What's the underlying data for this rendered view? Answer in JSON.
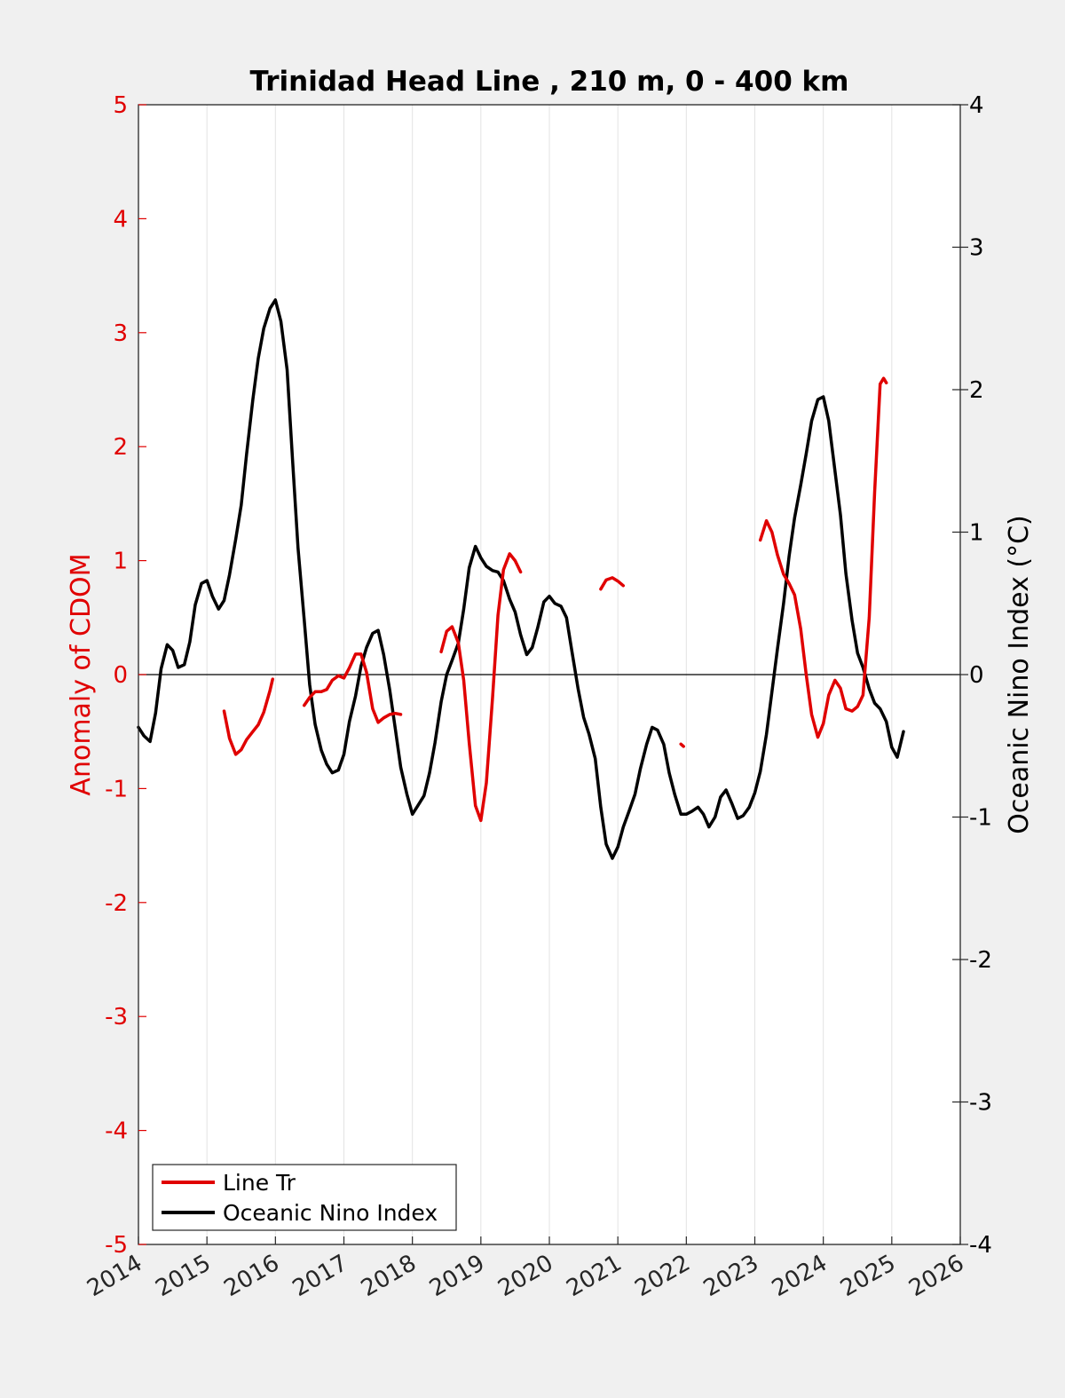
{
  "chart_data": {
    "type": "line",
    "title": "Trinidad Head Line , 210 m, 0 - 400 km",
    "ylabel_left": "Anomaly of CDOM",
    "ylabel_right": "Oceanic Nino Index (°C)",
    "xlabel": "",
    "xlim": [
      2014,
      2026
    ],
    "ylim_left": [
      -5,
      5
    ],
    "ylim_right": [
      -4,
      4
    ],
    "x_ticks": [
      "2014",
      "2015",
      "2016",
      "2017",
      "2018",
      "2019",
      "2020",
      "2021",
      "2022",
      "2023",
      "2024",
      "2025",
      "2026"
    ],
    "y_ticks_left": [
      "-5",
      "-4",
      "-3",
      "-2",
      "-1",
      "0",
      "1",
      "2",
      "3",
      "4",
      "5"
    ],
    "y_ticks_right": [
      "-4",
      "-3",
      "-2",
      "-1",
      "0",
      "1",
      "2",
      "3",
      "4"
    ],
    "grid": "vertical",
    "legend_position": "bottom-left",
    "colors": {
      "cdom": "#e00000",
      "oni": "#000000",
      "left_axis": "#e00000",
      "right_axis": "#000000"
    },
    "series": [
      {
        "name": "Line Tr",
        "axis": "left",
        "color": "#e00000",
        "segments": [
          [
            [
              2015.25,
              -0.32
            ],
            [
              2015.33,
              -0.56
            ],
            [
              2015.42,
              -0.7
            ],
            [
              2015.5,
              -0.66
            ],
            [
              2015.58,
              -0.57
            ],
            [
              2015.67,
              -0.5
            ],
            [
              2015.75,
              -0.44
            ],
            [
              2015.83,
              -0.33
            ],
            [
              2015.92,
              -0.14
            ],
            [
              2015.96,
              -0.04
            ]
          ],
          [
            [
              2016.42,
              -0.27
            ],
            [
              2016.5,
              -0.2
            ],
            [
              2016.58,
              -0.15
            ],
            [
              2016.67,
              -0.15
            ],
            [
              2016.75,
              -0.13
            ],
            [
              2016.83,
              -0.05
            ],
            [
              2016.92,
              -0.01
            ],
            [
              2017.0,
              -0.03
            ],
            [
              2017.08,
              0.06
            ],
            [
              2017.17,
              0.18
            ],
            [
              2017.25,
              0.18
            ],
            [
              2017.33,
              0.02
            ],
            [
              2017.42,
              -0.3
            ],
            [
              2017.5,
              -0.42
            ],
            [
              2017.58,
              -0.38
            ],
            [
              2017.67,
              -0.35
            ],
            [
              2017.75,
              -0.34
            ],
            [
              2017.83,
              -0.35
            ]
          ],
          [
            [
              2018.42,
              0.2
            ],
            [
              2018.5,
              0.38
            ],
            [
              2018.58,
              0.42
            ],
            [
              2018.67,
              0.28
            ],
            [
              2018.75,
              -0.05
            ],
            [
              2018.83,
              -0.6
            ],
            [
              2018.92,
              -1.15
            ],
            [
              2019.0,
              -1.28
            ],
            [
              2019.08,
              -0.95
            ],
            [
              2019.17,
              -0.2
            ],
            [
              2019.25,
              0.52
            ],
            [
              2019.33,
              0.92
            ],
            [
              2019.42,
              1.06
            ],
            [
              2019.5,
              1.0
            ],
            [
              2019.58,
              0.9
            ]
          ],
          [
            [
              2020.75,
              0.75
            ],
            [
              2020.83,
              0.83
            ],
            [
              2020.92,
              0.85
            ],
            [
              2021.0,
              0.82
            ],
            [
              2021.08,
              0.78
            ]
          ],
          [
            [
              2021.92,
              -0.61
            ],
            [
              2021.96,
              -0.63
            ]
          ],
          [
            [
              2023.08,
              1.18
            ],
            [
              2023.17,
              1.35
            ],
            [
              2023.25,
              1.25
            ],
            [
              2023.33,
              1.05
            ],
            [
              2023.42,
              0.88
            ],
            [
              2023.5,
              0.8
            ],
            [
              2023.58,
              0.7
            ],
            [
              2023.67,
              0.4
            ],
            [
              2023.75,
              0.0
            ],
            [
              2023.83,
              -0.35
            ],
            [
              2023.92,
              -0.55
            ],
            [
              2024.0,
              -0.43
            ],
            [
              2024.08,
              -0.18
            ],
            [
              2024.17,
              -0.05
            ],
            [
              2024.25,
              -0.12
            ],
            [
              2024.33,
              -0.3
            ],
            [
              2024.42,
              -0.32
            ],
            [
              2024.5,
              -0.28
            ],
            [
              2024.58,
              -0.18
            ],
            [
              2024.67,
              0.5
            ],
            [
              2024.75,
              1.6
            ],
            [
              2024.83,
              2.55
            ],
            [
              2024.88,
              2.6
            ],
            [
              2024.92,
              2.56
            ]
          ]
        ]
      },
      {
        "name": "Oceanic Nino Index",
        "axis": "right",
        "color": "#000000",
        "segments": [
          [
            [
              2014.0,
              -0.37
            ],
            [
              2014.08,
              -0.43
            ],
            [
              2014.17,
              -0.47
            ],
            [
              2014.25,
              -0.27
            ],
            [
              2014.33,
              0.04
            ],
            [
              2014.42,
              0.21
            ],
            [
              2014.5,
              0.17
            ],
            [
              2014.58,
              0.05
            ],
            [
              2014.67,
              0.07
            ],
            [
              2014.75,
              0.23
            ],
            [
              2014.83,
              0.49
            ],
            [
              2014.92,
              0.64
            ],
            [
              2015.0,
              0.66
            ],
            [
              2015.08,
              0.55
            ],
            [
              2015.17,
              0.46
            ],
            [
              2015.25,
              0.52
            ],
            [
              2015.33,
              0.7
            ],
            [
              2015.42,
              0.95
            ],
            [
              2015.5,
              1.19
            ],
            [
              2015.58,
              1.55
            ],
            [
              2015.67,
              1.93
            ],
            [
              2015.75,
              2.22
            ],
            [
              2015.83,
              2.43
            ],
            [
              2015.92,
              2.57
            ],
            [
              2016.0,
              2.63
            ],
            [
              2016.08,
              2.48
            ],
            [
              2016.17,
              2.14
            ],
            [
              2016.25,
              1.51
            ],
            [
              2016.33,
              0.89
            ],
            [
              2016.42,
              0.39
            ],
            [
              2016.5,
              -0.07
            ],
            [
              2016.58,
              -0.35
            ],
            [
              2016.67,
              -0.53
            ],
            [
              2016.75,
              -0.63
            ],
            [
              2016.83,
              -0.69
            ],
            [
              2016.92,
              -0.67
            ],
            [
              2017.0,
              -0.56
            ],
            [
              2017.08,
              -0.33
            ],
            [
              2017.17,
              -0.15
            ],
            [
              2017.25,
              0.06
            ],
            [
              2017.33,
              0.19
            ],
            [
              2017.42,
              0.29
            ],
            [
              2017.5,
              0.31
            ],
            [
              2017.58,
              0.14
            ],
            [
              2017.67,
              -0.11
            ],
            [
              2017.75,
              -0.38
            ],
            [
              2017.83,
              -0.65
            ],
            [
              2017.92,
              -0.84
            ],
            [
              2018.0,
              -0.98
            ],
            [
              2018.08,
              -0.92
            ],
            [
              2018.17,
              -0.85
            ],
            [
              2018.25,
              -0.69
            ],
            [
              2018.33,
              -0.48
            ],
            [
              2018.42,
              -0.19
            ],
            [
              2018.5,
              0.0
            ],
            [
              2018.58,
              0.1
            ],
            [
              2018.67,
              0.22
            ],
            [
              2018.75,
              0.46
            ],
            [
              2018.83,
              0.75
            ],
            [
              2018.92,
              0.9
            ],
            [
              2019.0,
              0.82
            ],
            [
              2019.08,
              0.76
            ],
            [
              2019.17,
              0.73
            ],
            [
              2019.25,
              0.72
            ],
            [
              2019.33,
              0.66
            ],
            [
              2019.42,
              0.53
            ],
            [
              2019.5,
              0.44
            ],
            [
              2019.58,
              0.28
            ],
            [
              2019.67,
              0.14
            ],
            [
              2019.75,
              0.19
            ],
            [
              2019.83,
              0.33
            ],
            [
              2019.92,
              0.51
            ],
            [
              2020.0,
              0.55
            ],
            [
              2020.08,
              0.5
            ],
            [
              2020.17,
              0.48
            ],
            [
              2020.25,
              0.4
            ],
            [
              2020.33,
              0.16
            ],
            [
              2020.42,
              -0.1
            ],
            [
              2020.5,
              -0.3
            ],
            [
              2020.58,
              -0.42
            ],
            [
              2020.67,
              -0.59
            ],
            [
              2020.75,
              -0.93
            ],
            [
              2020.83,
              -1.19
            ],
            [
              2020.92,
              -1.29
            ],
            [
              2021.0,
              -1.21
            ],
            [
              2021.08,
              -1.07
            ],
            [
              2021.17,
              -0.95
            ],
            [
              2021.25,
              -0.84
            ],
            [
              2021.33,
              -0.66
            ],
            [
              2021.42,
              -0.49
            ],
            [
              2021.5,
              -0.37
            ],
            [
              2021.58,
              -0.39
            ],
            [
              2021.67,
              -0.49
            ],
            [
              2021.75,
              -0.69
            ],
            [
              2021.83,
              -0.84
            ],
            [
              2021.92,
              -0.98
            ],
            [
              2022.0,
              -0.98
            ],
            [
              2022.08,
              -0.96
            ],
            [
              2022.17,
              -0.93
            ],
            [
              2022.25,
              -0.98
            ],
            [
              2022.33,
              -1.07
            ],
            [
              2022.42,
              -1.0
            ],
            [
              2022.5,
              -0.86
            ],
            [
              2022.58,
              -0.81
            ],
            [
              2022.67,
              -0.91
            ],
            [
              2022.75,
              -1.01
            ],
            [
              2022.83,
              -0.99
            ],
            [
              2022.92,
              -0.93
            ],
            [
              2023.0,
              -0.83
            ],
            [
              2023.08,
              -0.68
            ],
            [
              2023.17,
              -0.42
            ],
            [
              2023.25,
              -0.12
            ],
            [
              2023.33,
              0.18
            ],
            [
              2023.42,
              0.5
            ],
            [
              2023.5,
              0.83
            ],
            [
              2023.58,
              1.1
            ],
            [
              2023.67,
              1.33
            ],
            [
              2023.75,
              1.55
            ],
            [
              2023.83,
              1.78
            ],
            [
              2023.92,
              1.93
            ],
            [
              2024.0,
              1.95
            ],
            [
              2024.08,
              1.78
            ],
            [
              2024.17,
              1.43
            ],
            [
              2024.25,
              1.12
            ],
            [
              2024.33,
              0.71
            ],
            [
              2024.42,
              0.38
            ],
            [
              2024.5,
              0.15
            ],
            [
              2024.58,
              0.05
            ],
            [
              2024.67,
              -0.1
            ],
            [
              2024.75,
              -0.2
            ],
            [
              2024.83,
              -0.24
            ],
            [
              2024.92,
              -0.33
            ],
            [
              2025.0,
              -0.51
            ],
            [
              2025.08,
              -0.58
            ],
            [
              2025.17,
              -0.4
            ]
          ]
        ]
      }
    ]
  }
}
